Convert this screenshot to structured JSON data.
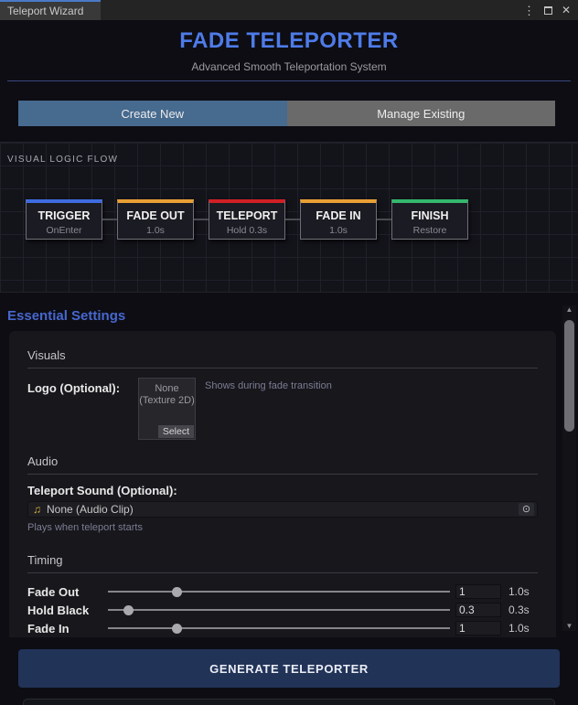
{
  "window": {
    "title": "Teleport Wizard"
  },
  "header": {
    "title": "FADE TELEPORTER",
    "subtitle": "Advanced Smooth Teleportation System",
    "accent_color": "#4e7be8",
    "divider_color": "#39497d"
  },
  "tabs": [
    {
      "label": "Create New",
      "active": true,
      "color": "#476a8f"
    },
    {
      "label": "Manage Existing",
      "active": false,
      "color": "#6a6a6a"
    }
  ],
  "flow": {
    "panel_label": "VISUAL LOGIC FLOW",
    "nodes": [
      {
        "title": "TRIGGER",
        "subtitle": "OnEnter",
        "color": "#3e6be0"
      },
      {
        "title": "FADE OUT",
        "subtitle": "1.0s",
        "color": "#e8a035"
      },
      {
        "title": "TELEPORT",
        "subtitle": "Hold 0.3s",
        "color": "#d02025"
      },
      {
        "title": "FADE IN",
        "subtitle": "1.0s",
        "color": "#e8a035"
      },
      {
        "title": "FINISH",
        "subtitle": "Restore",
        "color": "#33b86e"
      }
    ]
  },
  "settings": {
    "section_title": "Essential Settings",
    "visuals": {
      "header": "Visuals",
      "logo_label": "Logo (Optional):",
      "logo_value_line1": "None",
      "logo_value_line2": "(Texture 2D)",
      "select_button": "Select",
      "note": "Shows during fade transition"
    },
    "audio": {
      "header": "Audio",
      "sound_label": "Teleport Sound (Optional):",
      "music_icon": "♫",
      "sound_value": "None (Audio Clip)",
      "picker_icon": "⊙",
      "note": "Plays when teleport starts"
    },
    "timing": {
      "header": "Timing",
      "slider_max": 5,
      "rows": [
        {
          "label": "Fade Out",
          "value": "1",
          "suffix": "1.0s"
        },
        {
          "label": "Hold Black",
          "value": "0.3",
          "suffix": "0.3s"
        },
        {
          "label": "Fade In",
          "value": "1",
          "suffix": "1.0s"
        }
      ]
    }
  },
  "generate_button": {
    "label": "GENERATE TELEPORTER",
    "color": "#223358"
  },
  "scrollbar": {
    "up_glyph": "▲",
    "down_glyph": "▼"
  }
}
